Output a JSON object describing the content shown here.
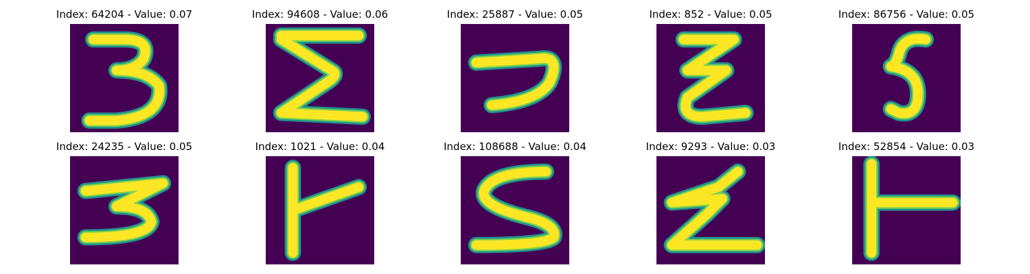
{
  "colors": {
    "background": "#440154",
    "edge": "#21918c",
    "mid": "#7ad151",
    "stroke": "#fde725"
  },
  "panels": [
    {
      "title": "Index: 64204 - Value: 0.07",
      "glyph": "three"
    },
    {
      "title": "Index: 94608 - Value: 0.06",
      "glyph": "sigma"
    },
    {
      "title": "Index: 25887 - Value: 0.05",
      "glyph": "hook"
    },
    {
      "title": "Index: 852 - Value: 0.05",
      "glyph": "zigzag"
    },
    {
      "title": "Index: 86756 - Value: 0.05",
      "glyph": "five"
    },
    {
      "title": "Index: 24235 - Value: 0.05",
      "glyph": "three-flat"
    },
    {
      "title": "Index: 1021 - Value: 0.04",
      "glyph": "tee"
    },
    {
      "title": "Index: 108688 - Value: 0.04",
      "glyph": "five-wide"
    },
    {
      "title": "Index: 9293 - Value: 0.03",
      "glyph": "zigzag-z"
    },
    {
      "title": "Index: 52854 - Value: 0.03",
      "glyph": "tee-thin"
    }
  ]
}
